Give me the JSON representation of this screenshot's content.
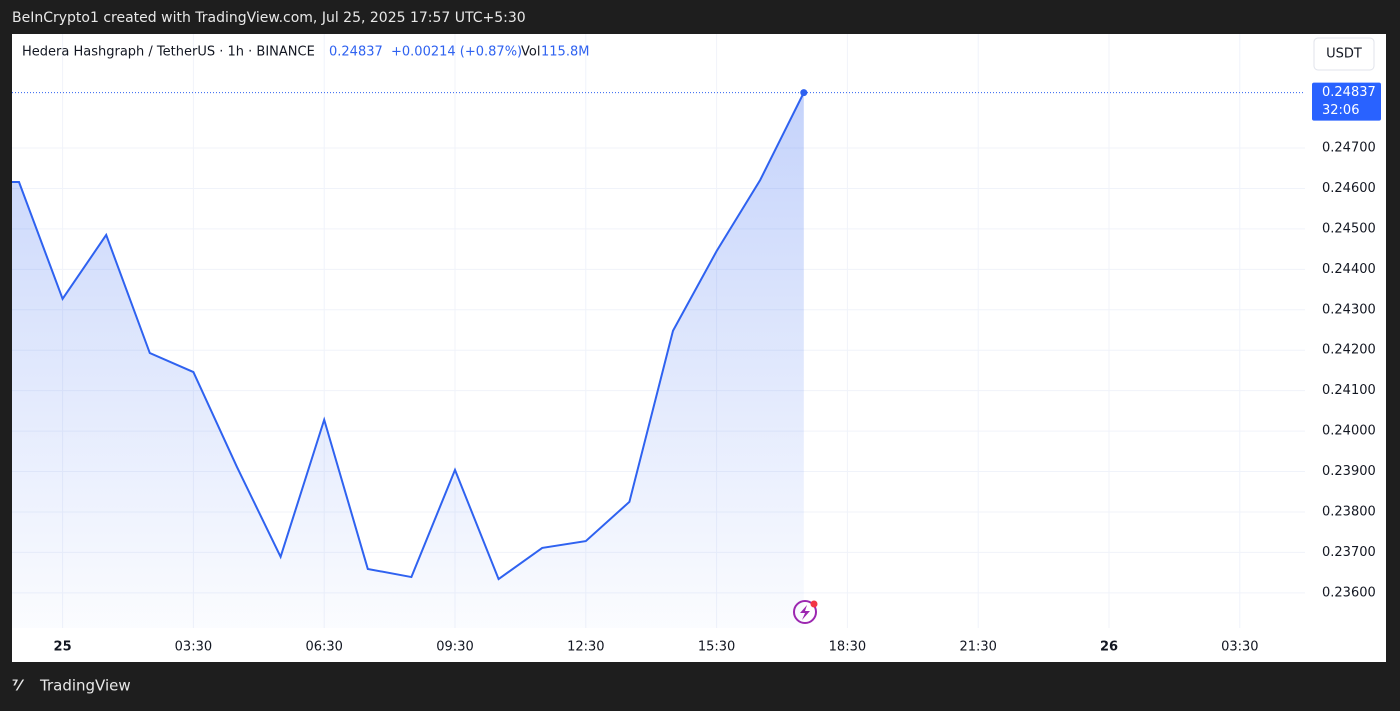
{
  "chart_data": {
    "type": "line",
    "attribution": "BeInCrypto1 created with TradingView.com, Jul 25, 2025 17:57 UTC+5:30",
    "title": "Hedera Hashgraph / TetherUS · 1h · BINANCE",
    "price": "0.24837",
    "change": "+0.00214 (+0.87%)",
    "volume_label": "Vol",
    "volume": "115.8M",
    "currency": "USDT",
    "countdown": "32:06",
    "brand": "TradingView",
    "categories": [
      null,
      "25",
      null,
      null,
      "03:30",
      null,
      null,
      "06:30",
      null,
      null,
      "09:30",
      null,
      null,
      "12:30",
      null,
      null,
      "15:30",
      null,
      null,
      "18:30",
      null,
      null,
      "21:30",
      null,
      null,
      "26",
      null,
      null,
      "03:30",
      null
    ],
    "series": [
      {
        "color": "#2f62f0",
        "values": [
          0.24616,
          0.24327,
          0.24485,
          0.24193,
          0.24146,
          0.23911,
          0.23689,
          0.24028,
          0.23659,
          0.23639,
          0.23904,
          0.23634,
          0.23711,
          0.23728,
          0.23825,
          0.24248,
          0.24445,
          0.24621,
          0.24837,
          null,
          null,
          null,
          null,
          null,
          null,
          null,
          null,
          null,
          null,
          null
        ]
      }
    ],
    "ylim": [
      0.23513,
      0.24982
    ],
    "yticks": [
      {
        "value": 0.236,
        "label": "0.23600"
      },
      {
        "value": 0.237,
        "label": "0.23700"
      },
      {
        "value": 0.238,
        "label": "0.23800"
      },
      {
        "value": 0.239,
        "label": "0.23900"
      },
      {
        "value": 0.24,
        "label": "0.24000"
      },
      {
        "value": 0.241,
        "label": "0.24100"
      },
      {
        "value": 0.242,
        "label": "0.24200"
      },
      {
        "value": 0.243,
        "label": "0.24300"
      },
      {
        "value": 0.244,
        "label": "0.24400"
      },
      {
        "value": 0.245,
        "label": "0.24500"
      },
      {
        "value": 0.246,
        "label": "0.24600"
      },
      {
        "value": 0.247,
        "label": "0.24700"
      }
    ],
    "grid": true
  }
}
